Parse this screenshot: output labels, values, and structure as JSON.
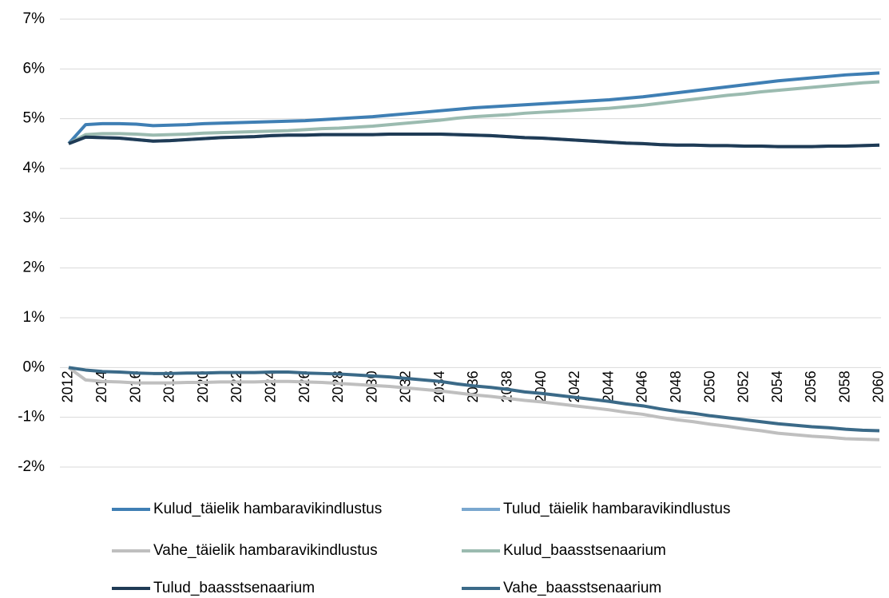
{
  "chart_data": {
    "type": "line",
    "x": [
      2012,
      2013,
      2014,
      2015,
      2016,
      2017,
      2018,
      2019,
      2020,
      2021,
      2022,
      2023,
      2024,
      2025,
      2026,
      2027,
      2028,
      2029,
      2030,
      2031,
      2032,
      2033,
      2034,
      2035,
      2036,
      2037,
      2038,
      2039,
      2040,
      2041,
      2042,
      2043,
      2044,
      2045,
      2046,
      2047,
      2048,
      2049,
      2050,
      2051,
      2052,
      2053,
      2054,
      2055,
      2056,
      2057,
      2058,
      2059,
      2060
    ],
    "xlim": [
      2012,
      2060
    ],
    "xticks": [
      2012,
      2014,
      2016,
      2018,
      2020,
      2022,
      2024,
      2026,
      2028,
      2030,
      2032,
      2034,
      2036,
      2038,
      2040,
      2042,
      2044,
      2046,
      2048,
      2050,
      2052,
      2054,
      2056,
      2058,
      2060
    ],
    "ylim": [
      -2,
      7
    ],
    "yticks": [
      {
        "value": -2,
        "label": "-2%"
      },
      {
        "value": -1,
        "label": "-1%"
      },
      {
        "value": 0,
        "label": "0%"
      },
      {
        "value": 1,
        "label": "1%"
      },
      {
        "value": 2,
        "label": "2%"
      },
      {
        "value": 3,
        "label": "3%"
      },
      {
        "value": 4,
        "label": "4%"
      },
      {
        "value": 5,
        "label": "5%"
      },
      {
        "value": 6,
        "label": "6%"
      },
      {
        "value": 7,
        "label": "7%"
      }
    ],
    "grid": true,
    "legend": "bottom",
    "series": [
      {
        "name": "Kulud_täielik hambaravikindlustus",
        "color": "#3f7fb4",
        "values": [
          4.5,
          4.88,
          4.9,
          4.9,
          4.89,
          4.86,
          4.87,
          4.88,
          4.9,
          4.91,
          4.92,
          4.93,
          4.94,
          4.95,
          4.96,
          4.98,
          5.0,
          5.02,
          5.04,
          5.07,
          5.1,
          5.13,
          5.16,
          5.19,
          5.22,
          5.24,
          5.26,
          5.28,
          5.3,
          5.32,
          5.34,
          5.36,
          5.38,
          5.41,
          5.44,
          5.48,
          5.52,
          5.56,
          5.6,
          5.64,
          5.68,
          5.72,
          5.76,
          5.79,
          5.82,
          5.85,
          5.88,
          5.9,
          5.92
        ]
      },
      {
        "name": "Tulud_täielik hambaravikindlustus",
        "color": "#7aa7cf",
        "values": [
          4.5,
          4.63,
          4.62,
          4.61,
          4.58,
          4.55,
          4.56,
          4.58,
          4.6,
          4.62,
          4.63,
          4.64,
          4.66,
          4.67,
          4.67,
          4.68,
          4.68,
          4.68,
          4.68,
          4.69,
          4.69,
          4.69,
          4.69,
          4.68,
          4.67,
          4.66,
          4.64,
          4.62,
          4.61,
          4.59,
          4.57,
          4.55,
          4.53,
          4.51,
          4.5,
          4.48,
          4.47,
          4.47,
          4.46,
          4.46,
          4.45,
          4.45,
          4.44,
          4.44,
          4.44,
          4.45,
          4.45,
          4.46,
          4.47
        ]
      },
      {
        "name": "Vahe_täielik hambaravikindlustus",
        "color": "#bfbfbf",
        "values": [
          0,
          -0.25,
          -0.28,
          -0.29,
          -0.31,
          -0.31,
          -0.31,
          -0.3,
          -0.3,
          -0.29,
          -0.29,
          -0.29,
          -0.28,
          -0.28,
          -0.29,
          -0.3,
          -0.32,
          -0.34,
          -0.36,
          -0.38,
          -0.41,
          -0.44,
          -0.47,
          -0.51,
          -0.55,
          -0.58,
          -0.62,
          -0.66,
          -0.69,
          -0.73,
          -0.77,
          -0.81,
          -0.85,
          -0.9,
          -0.94,
          -1.0,
          -1.05,
          -1.09,
          -1.14,
          -1.18,
          -1.23,
          -1.27,
          -1.32,
          -1.35,
          -1.38,
          -1.4,
          -1.43,
          -1.44,
          -1.45
        ]
      },
      {
        "name": "Kulud_baasstsenaarium",
        "color": "#9bbbb0",
        "values": [
          4.5,
          4.68,
          4.7,
          4.7,
          4.69,
          4.67,
          4.68,
          4.69,
          4.71,
          4.72,
          4.73,
          4.74,
          4.75,
          4.76,
          4.78,
          4.8,
          4.81,
          4.83,
          4.85,
          4.88,
          4.91,
          4.94,
          4.97,
          5.01,
          5.04,
          5.06,
          5.08,
          5.11,
          5.13,
          5.15,
          5.17,
          5.19,
          5.21,
          5.24,
          5.27,
          5.31,
          5.35,
          5.39,
          5.43,
          5.47,
          5.5,
          5.54,
          5.57,
          5.6,
          5.63,
          5.66,
          5.69,
          5.72,
          5.74
        ]
      },
      {
        "name": "Tulud_baasstsenaarium",
        "color": "#1f3b55",
        "values": [
          4.5,
          4.63,
          4.62,
          4.61,
          4.58,
          4.55,
          4.56,
          4.58,
          4.6,
          4.62,
          4.63,
          4.64,
          4.66,
          4.67,
          4.67,
          4.68,
          4.68,
          4.68,
          4.68,
          4.69,
          4.69,
          4.69,
          4.69,
          4.68,
          4.67,
          4.66,
          4.64,
          4.62,
          4.61,
          4.59,
          4.57,
          4.55,
          4.53,
          4.51,
          4.5,
          4.48,
          4.47,
          4.47,
          4.46,
          4.46,
          4.45,
          4.45,
          4.44,
          4.44,
          4.44,
          4.45,
          4.45,
          4.46,
          4.47
        ]
      },
      {
        "name": "Vahe_baasstsenaarium",
        "color": "#3b6a88",
        "values": [
          0,
          -0.05,
          -0.08,
          -0.09,
          -0.11,
          -0.12,
          -0.12,
          -0.11,
          -0.11,
          -0.1,
          -0.1,
          -0.1,
          -0.09,
          -0.09,
          -0.11,
          -0.12,
          -0.13,
          -0.15,
          -0.17,
          -0.19,
          -0.22,
          -0.25,
          -0.28,
          -0.33,
          -0.37,
          -0.4,
          -0.44,
          -0.49,
          -0.52,
          -0.56,
          -0.6,
          -0.64,
          -0.68,
          -0.73,
          -0.77,
          -0.83,
          -0.88,
          -0.92,
          -0.97,
          -1.01,
          -1.05,
          -1.09,
          -1.13,
          -1.16,
          -1.19,
          -1.21,
          -1.24,
          -1.26,
          -1.27
        ]
      }
    ]
  }
}
